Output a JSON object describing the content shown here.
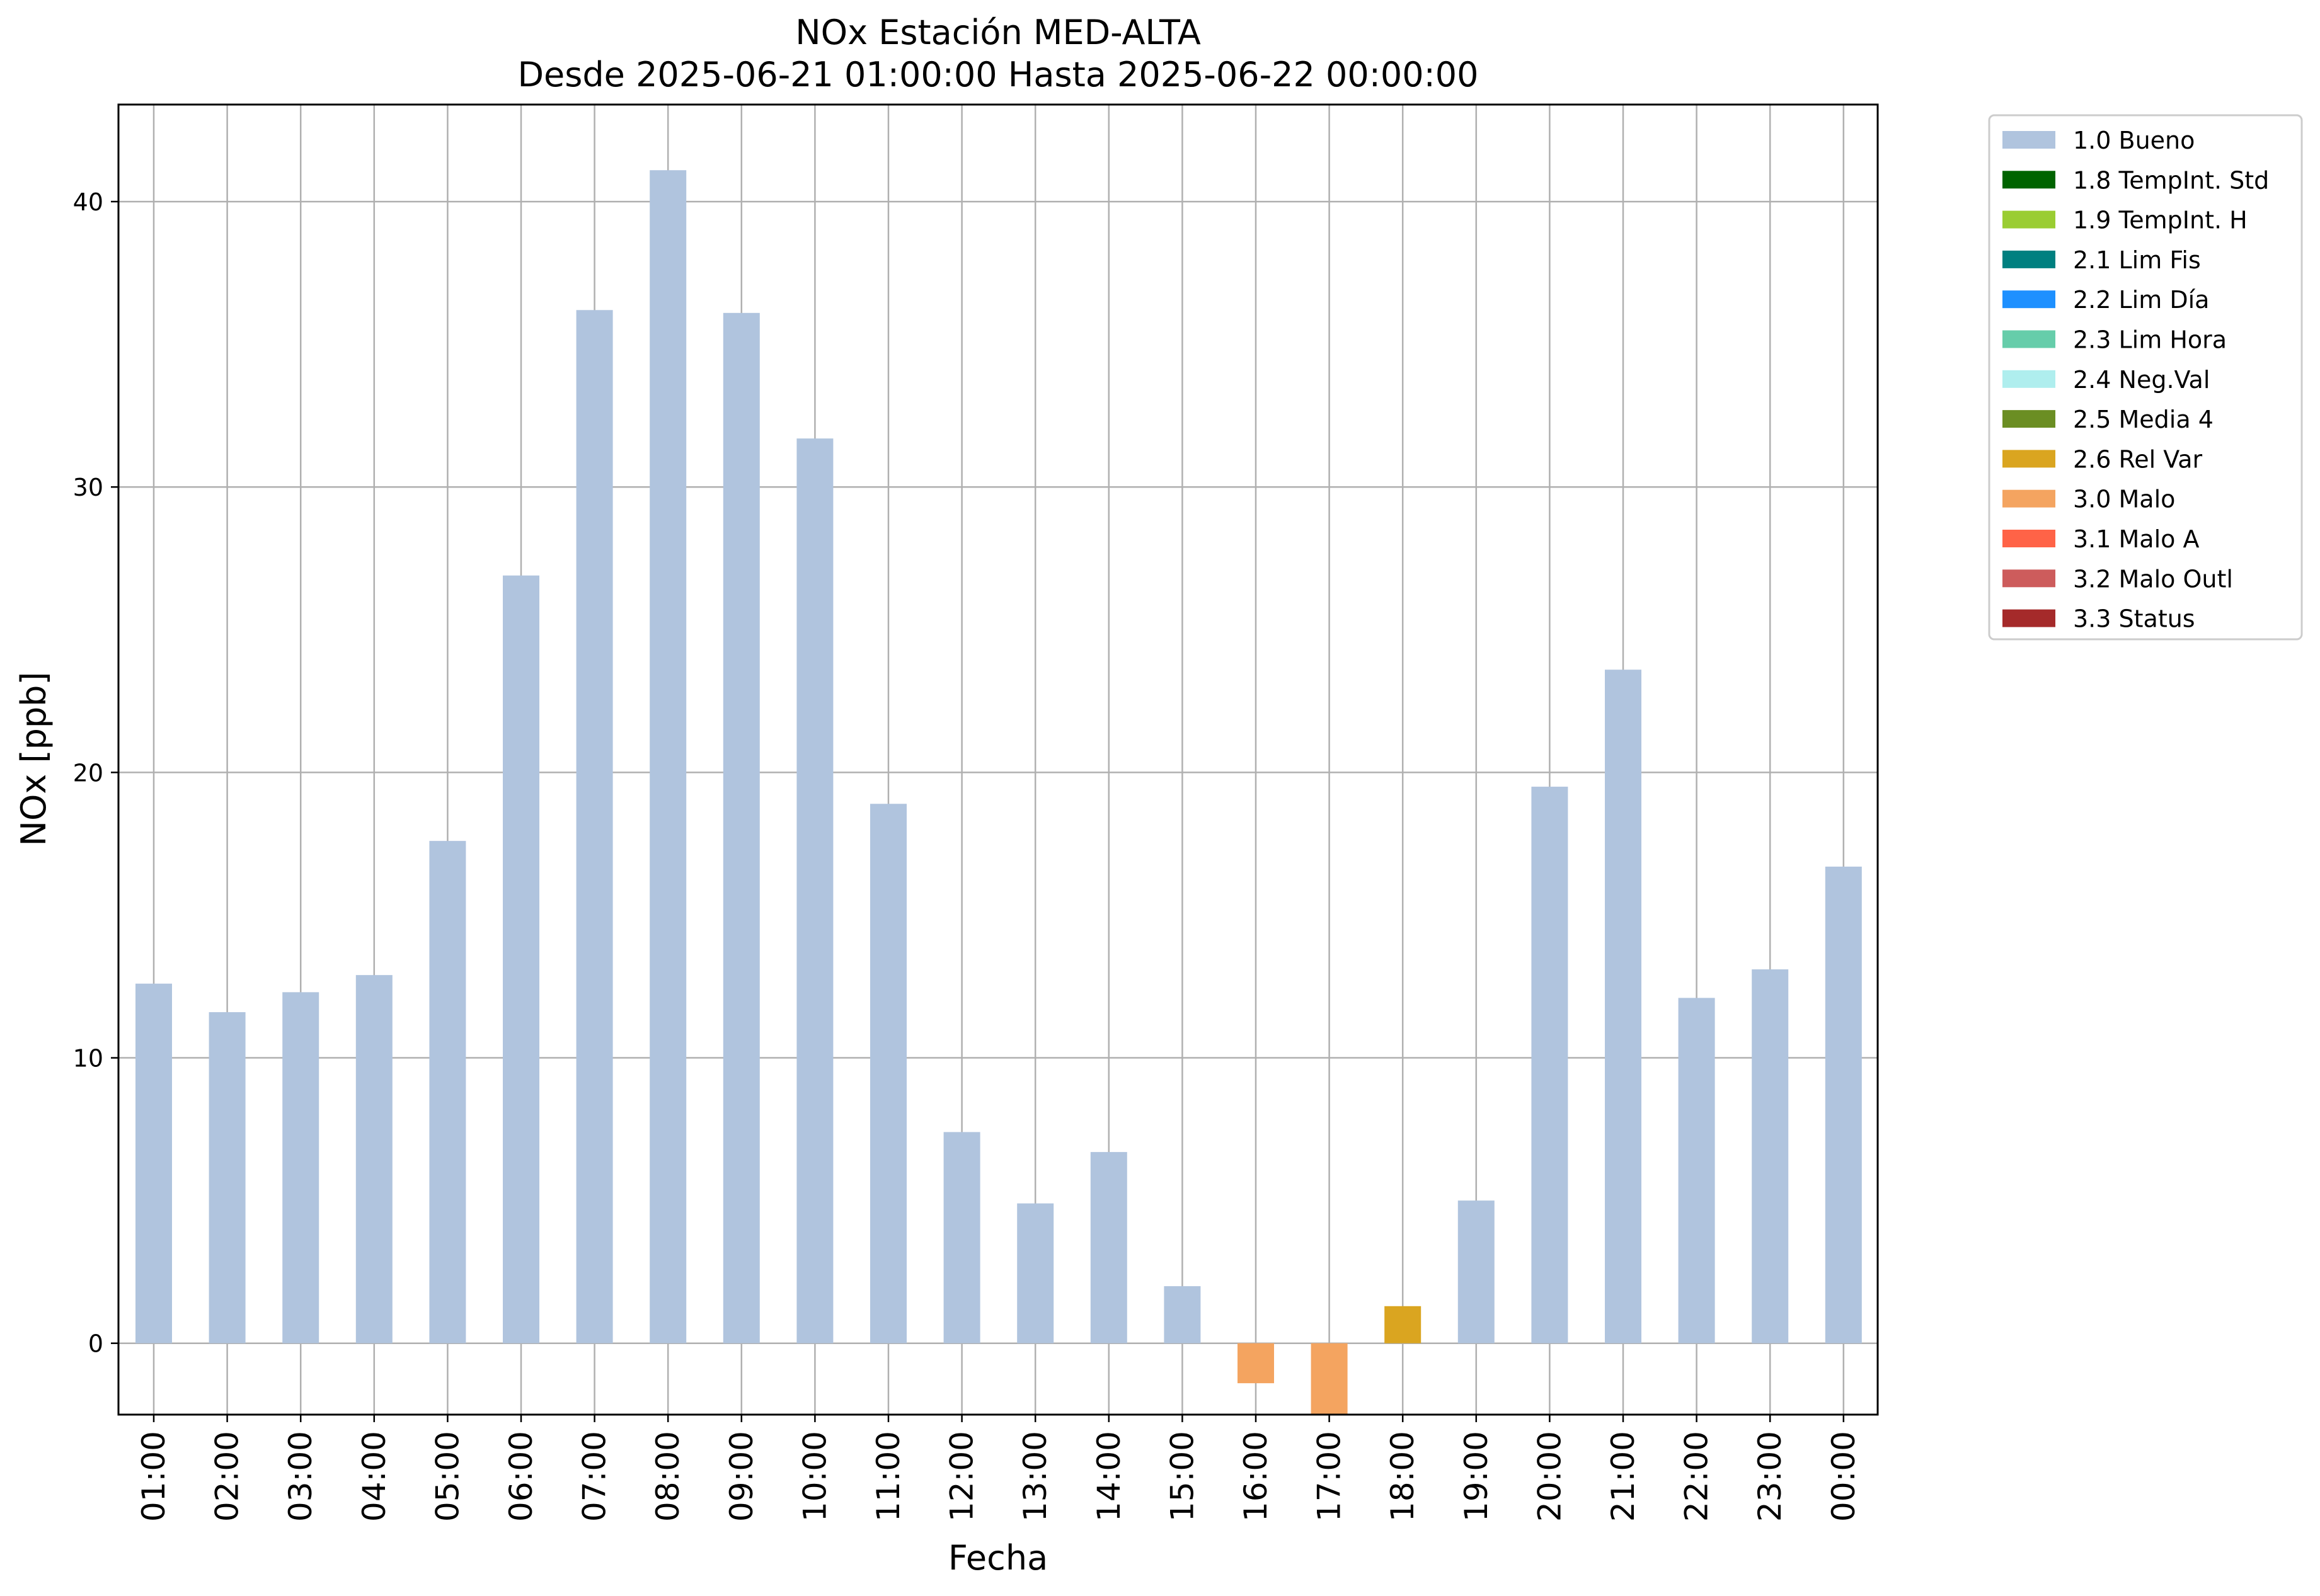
{
  "chart_data": {
    "type": "bar",
    "title_line1": "NOx Estación MED-ALTA",
    "title_line2": "Desde 2025-06-21 01:00:00 Hasta 2025-06-22 00:00:00",
    "xlabel": "Fecha",
    "ylabel": "NOx [ppb]",
    "ylim": [
      -2.5,
      43.4
    ],
    "yticks": [
      0,
      10,
      20,
      30,
      40
    ],
    "grid": true,
    "legend_position": "outside-top-right",
    "categories": [
      "01:00",
      "02:00",
      "03:00",
      "04:00",
      "05:00",
      "06:00",
      "07:00",
      "08:00",
      "09:00",
      "10:00",
      "11:00",
      "12:00",
      "13:00",
      "14:00",
      "15:00",
      "16:00",
      "17:00",
      "18:00",
      "19:00",
      "20:00",
      "21:00",
      "22:00",
      "23:00",
      "00:00"
    ],
    "values": [
      12.6,
      11.6,
      12.3,
      12.9,
      17.6,
      26.9,
      36.2,
      41.1,
      36.1,
      31.7,
      18.9,
      7.4,
      4.9,
      6.7,
      2.0,
      -1.4,
      -2.5,
      1.3,
      5.0,
      19.5,
      23.6,
      12.1,
      13.1,
      16.7
    ],
    "flags": [
      "1.0 Bueno",
      "1.0 Bueno",
      "1.0 Bueno",
      "1.0 Bueno",
      "1.0 Bueno",
      "1.0 Bueno",
      "1.0 Bueno",
      "1.0 Bueno",
      "1.0 Bueno",
      "1.0 Bueno",
      "1.0 Bueno",
      "1.0 Bueno",
      "1.0 Bueno",
      "1.0 Bueno",
      "1.0 Bueno",
      "3.0 Malo",
      "3.0 Malo",
      "2.6 Rel Var",
      "1.0 Bueno",
      "1.0 Bueno",
      "1.0 Bueno",
      "1.0 Bueno",
      "1.0 Bueno",
      "1.0 Bueno"
    ],
    "legend": [
      {
        "label": "1.0 Bueno",
        "color": "#b0c4de"
      },
      {
        "label": "1.8 TempInt. Std",
        "color": "#006400"
      },
      {
        "label": "1.9 TempInt. H",
        "color": "#9acd32"
      },
      {
        "label": "2.1 Lim Fis",
        "color": "#008080"
      },
      {
        "label": "2.2 Lim Día",
        "color": "#1e90ff"
      },
      {
        "label": "2.3 Lim Hora",
        "color": "#66cdaa"
      },
      {
        "label": "2.4 Neg.Val",
        "color": "#afeeee"
      },
      {
        "label": "2.5 Media 4",
        "color": "#6b8e23"
      },
      {
        "label": "2.6 Rel Var",
        "color": "#daa520"
      },
      {
        "label": "3.0 Malo",
        "color": "#f4a460"
      },
      {
        "label": "3.1 Malo A",
        "color": "#ff6347"
      },
      {
        "label": "3.2 Malo Outl",
        "color": "#cd5c5c"
      },
      {
        "label": "3.3 Status",
        "color": "#a52a2a"
      }
    ]
  }
}
